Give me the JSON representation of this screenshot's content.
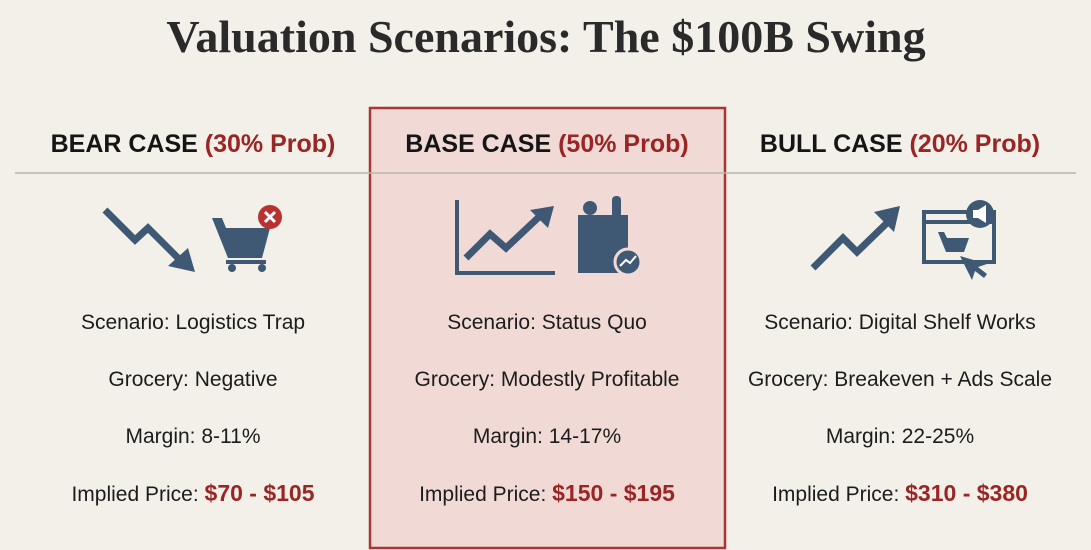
{
  "title": "Valuation Scenarios: The $100B Swing",
  "columns": [
    {
      "case": "BEAR CASE",
      "probability": "(30% Prob)",
      "scenario": "Scenario: Logistics Trap",
      "grocery": "Grocery: Negative",
      "margin": "Margin: 8-11%",
      "price_label": "Implied Price:",
      "price": "$70 - $105"
    },
    {
      "case": "BASE CASE",
      "probability": "(50% Prob)",
      "scenario": "Scenario: Status Quo",
      "grocery": "Grocery: Modestly Profitable",
      "margin": "Margin: 14-17%",
      "price_label": "Implied Price:",
      "price": "$150 - $195"
    },
    {
      "case": "BULL CASE",
      "probability": "(20% Prob)",
      "scenario": "Scenario: Digital Shelf Works",
      "grocery": "Grocery: Breakeven + Ads Scale",
      "margin": "Margin: 22-25%",
      "price_label": "Implied Price:",
      "price": "$310 - $380"
    }
  ]
}
